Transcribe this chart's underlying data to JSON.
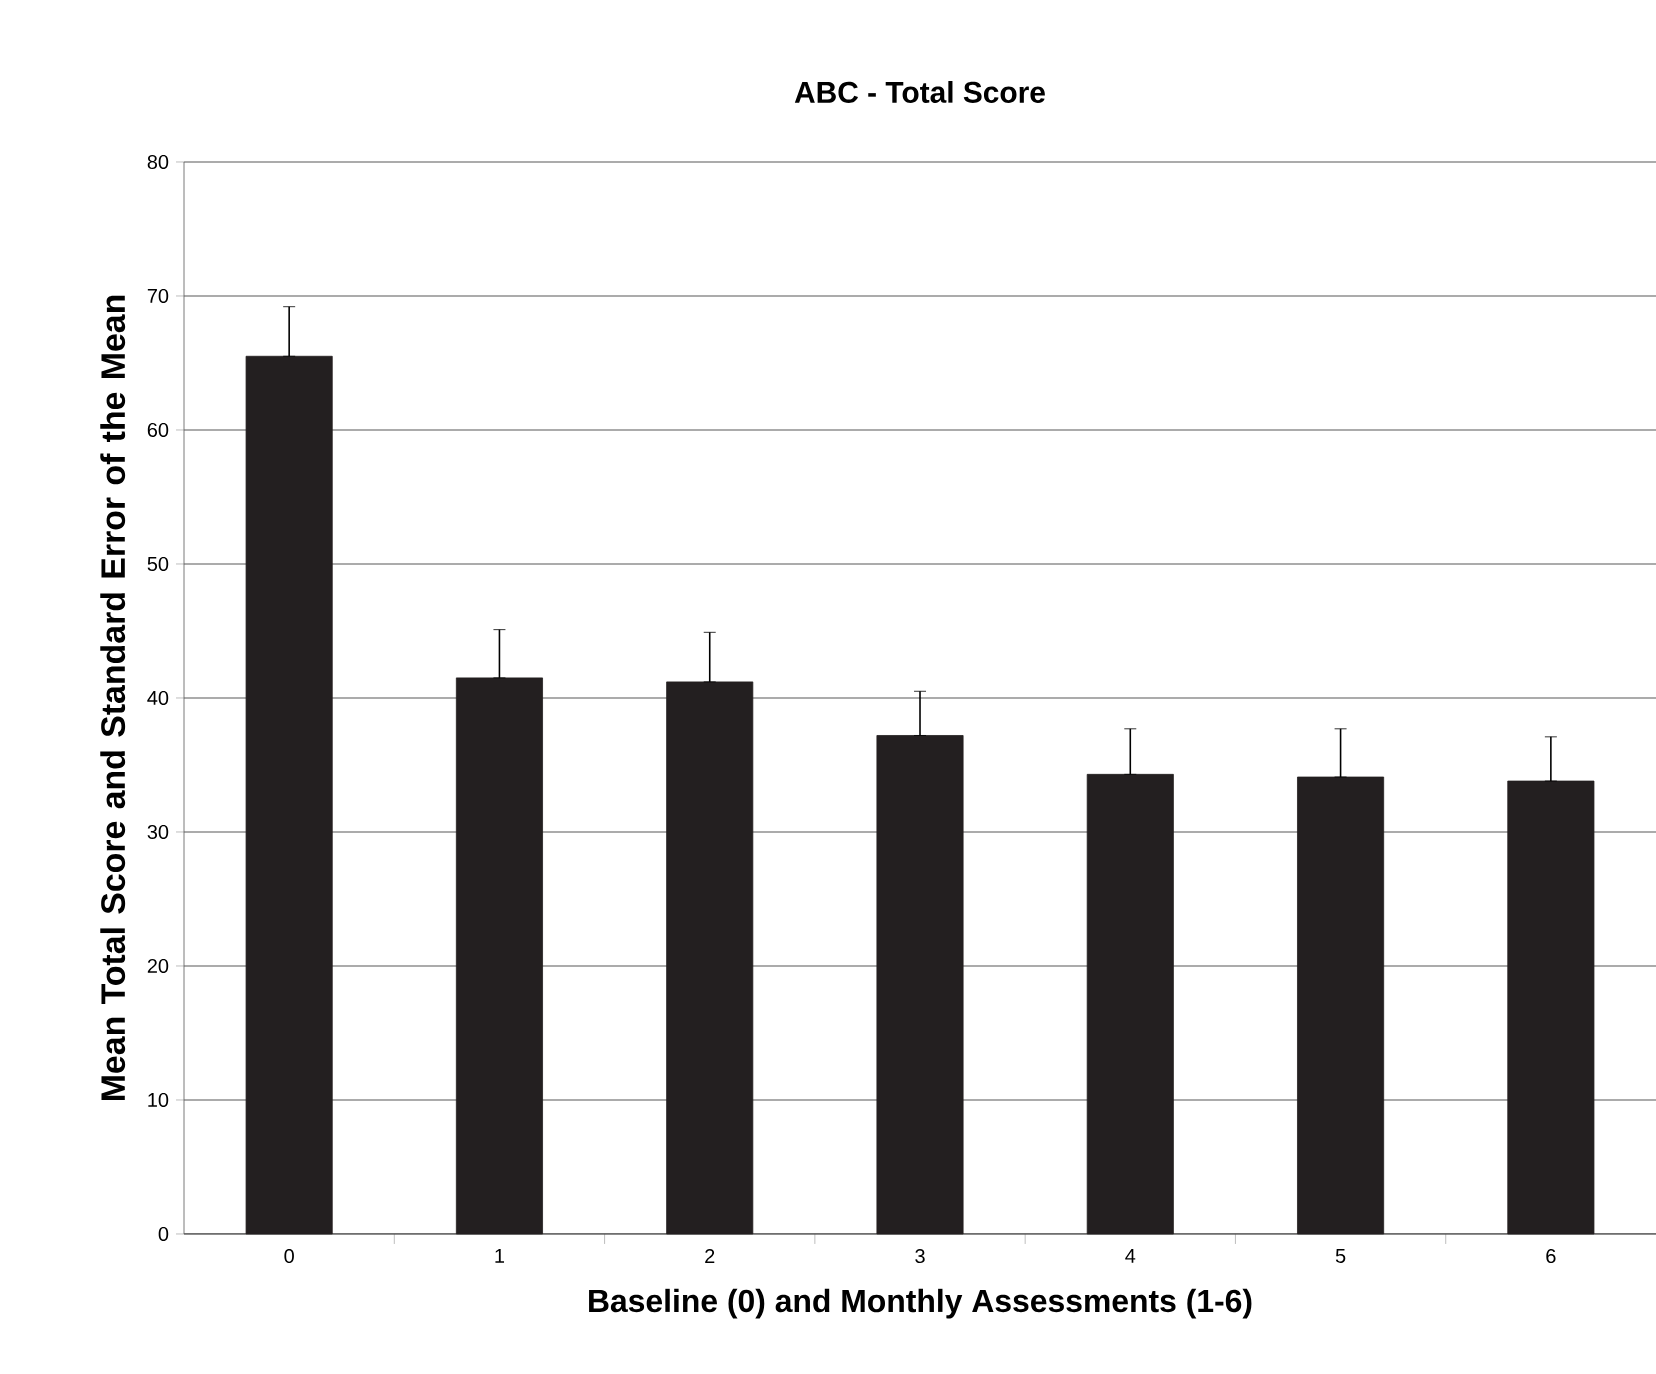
{
  "chart_data": {
    "type": "bar",
    "title": "ABC - Total Score",
    "xlabel": "Baseline (0) and Monthly Assessments (1-6)",
    "ylabel": "Mean Total Score and Standard Error of the Mean",
    "categories": [
      "0",
      "1",
      "2",
      "3",
      "4",
      "5",
      "6"
    ],
    "values": [
      65.5,
      41.5,
      41.2,
      37.2,
      34.3,
      34.1,
      33.8
    ],
    "errors": [
      [
        65.5,
        69.2
      ],
      [
        41.5,
        45.1
      ],
      [
        41.2,
        44.9
      ],
      [
        37.2,
        40.5
      ],
      [
        34.3,
        37.7
      ],
      [
        34.1,
        37.7
      ],
      [
        33.8,
        37.1
      ]
    ],
    "color": "#231f20",
    "ylim": [
      0,
      80
    ],
    "yticks": [
      0,
      10,
      20,
      30,
      40,
      50,
      60,
      70,
      80
    ],
    "grid": "y"
  }
}
